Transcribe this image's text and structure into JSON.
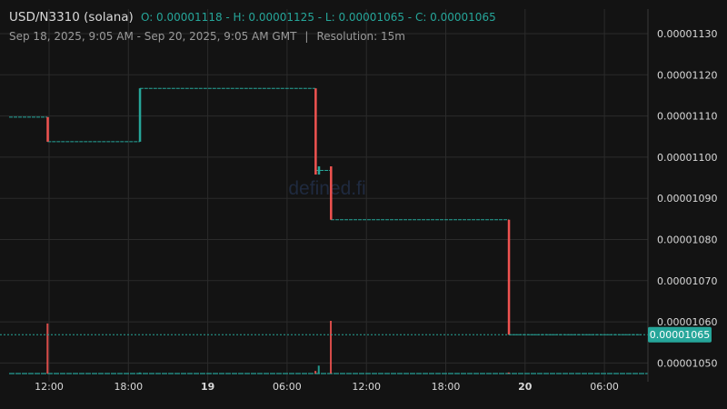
{
  "header": {
    "pair": "USD/N3310 (solana)",
    "ohlc": "O: 0.00001118 - H: 0.00001125 - L: 0.00001065 - C: 0.00001065",
    "range": "Sep 18, 2025, 9:05 AM - Sep 20, 2025, 9:05 AM GMT",
    "separator": "|",
    "resolution": "Resolution: 15m"
  },
  "watermark": "defined.fi",
  "colors": {
    "background": "#131313",
    "grid": "#2b2b2b",
    "up": "#26a69a",
    "down": "#ef5350",
    "price_line": "#26a69a",
    "axis_text": "#d9d9d9"
  },
  "chart_data": {
    "type": "candlestick",
    "resolution": "15m",
    "xlabels": [
      "12:00",
      "18:00",
      "19",
      "06:00",
      "12:00",
      "18:00",
      "20",
      "06:00"
    ],
    "xlabels_bold": [
      "19",
      "20"
    ],
    "ylabels": [
      "0.00001130",
      "0.00001120",
      "0.00001110",
      "0.00001100",
      "0.00001090",
      "0.00001080",
      "0.00001070",
      "0.00001060",
      "0.00001050"
    ],
    "ylim": [
      1.04755e-05,
      1.13833e-05
    ],
    "last_price": "0.00001065",
    "grid": true,
    "segments": [
      {
        "start": "Sep 18 09:05",
        "end": "Sep 18 12:00",
        "value": 1.118e-05
      },
      {
        "start": "Sep 18 12:00",
        "end": "Sep 18 19:00",
        "value": 1.112e-05
      },
      {
        "start": "Sep 18 19:00",
        "end": "Sep 19 08:20",
        "value": 1.125e-05
      },
      {
        "start": "Sep 19 08:20",
        "end": "Sep 19 09:30",
        "value": 1.105e-05
      },
      {
        "start": "Sep 19 09:30",
        "end": "Sep 19 23:00",
        "value": 1.093e-05
      },
      {
        "start": "Sep 19 23:00",
        "end": "Sep 20 09:05",
        "value": 1.065e-05
      }
    ],
    "candles": [
      {
        "time": "Sep 18 12:00",
        "open": 1.118e-05,
        "close": 1.112e-05,
        "volume": 0.95
      },
      {
        "time": "Sep 18 19:00",
        "open": 1.112e-05,
        "close": 1.125e-05,
        "volume": 0.02
      },
      {
        "time": "Sep 19 08:20",
        "open": 1.125e-05,
        "close": 1.104e-05,
        "volume": 0.05
      },
      {
        "time": "Sep 19 08:35",
        "open": 1.104e-05,
        "close": 1.106e-05,
        "volume": 0.15
      },
      {
        "time": "Sep 19 09:30",
        "open": 1.106e-05,
        "close": 1.093e-05,
        "volume": 1.0
      },
      {
        "time": "Sep 19 23:00",
        "open": 1.093e-05,
        "close": 1.065e-05,
        "volume": 0.02
      }
    ]
  }
}
